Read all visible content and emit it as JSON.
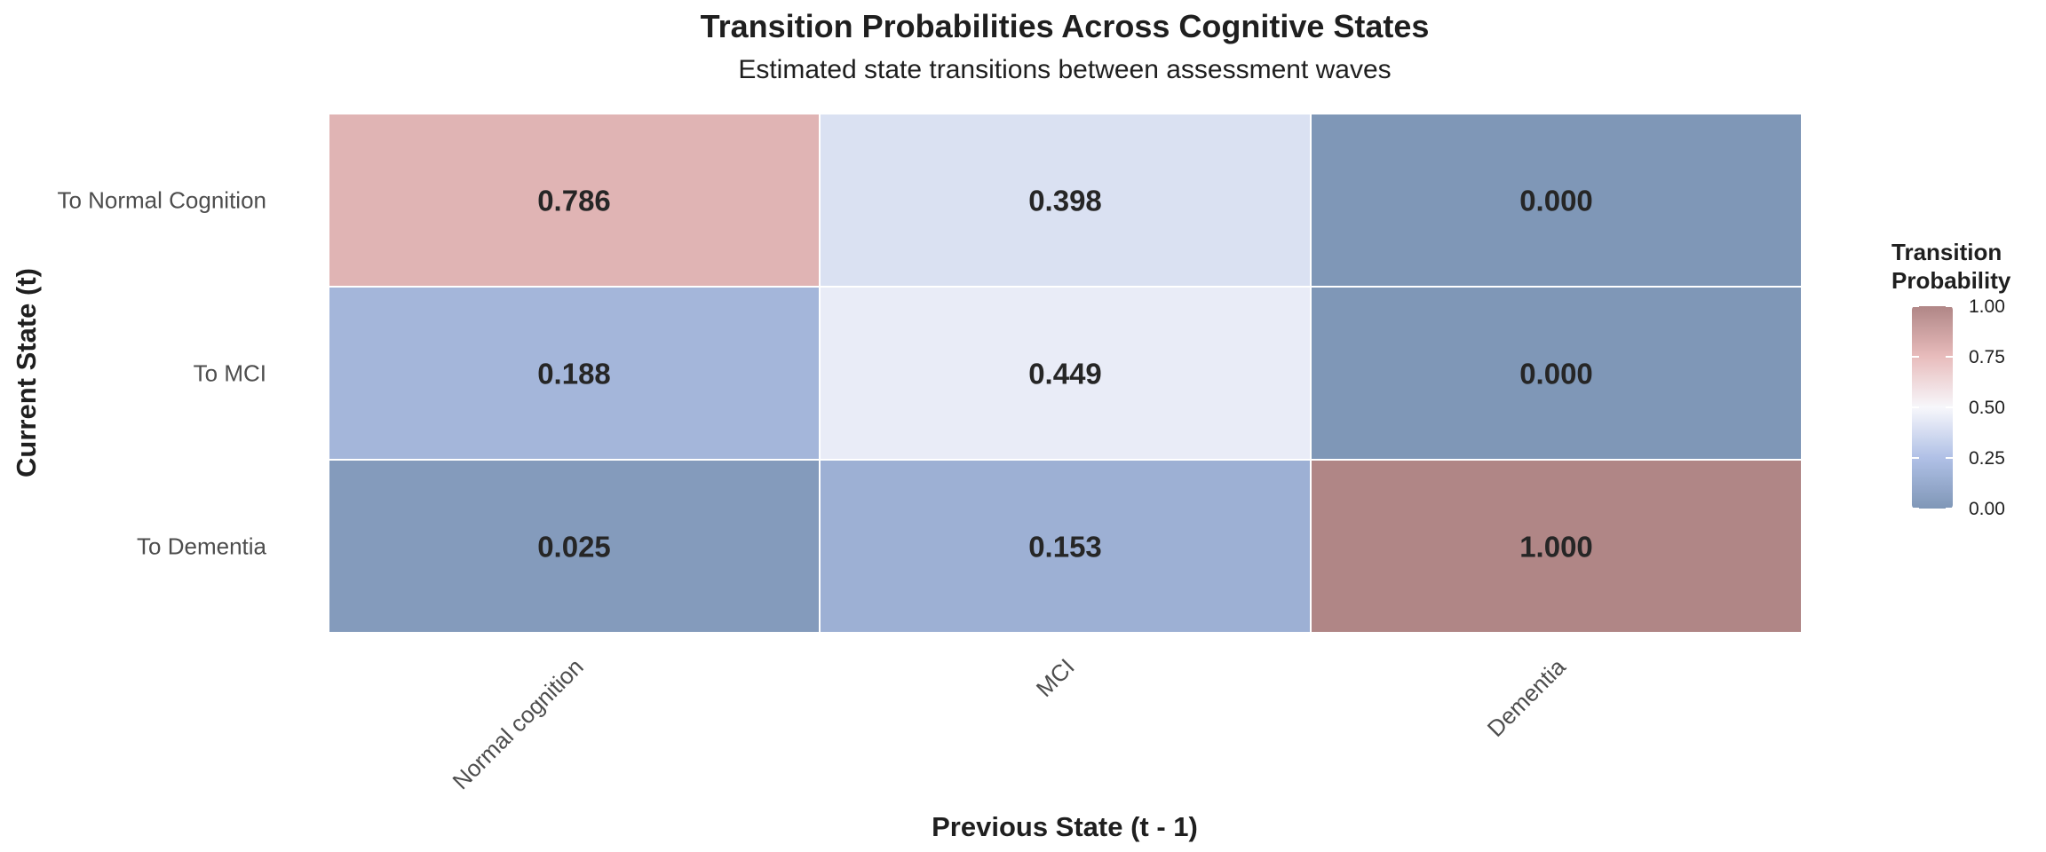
{
  "chart_data": {
    "type": "heatmap",
    "title": "Transition Probabilities Across Cognitive States",
    "subtitle": "Estimated state transitions between assessment waves",
    "xlabel": "Previous State (t - 1)",
    "ylabel": "Current State (t)",
    "x_categories": [
      "Normal cognition",
      "MCI",
      "Dementia"
    ],
    "y_categories": [
      "To Normal Cognition",
      "To MCI",
      "To Dementia"
    ],
    "values": [
      [
        0.786,
        0.398,
        0.0
      ],
      [
        0.188,
        0.449,
        0.0
      ],
      [
        0.025,
        0.153,
        1.0
      ]
    ],
    "cell_labels": [
      [
        "0.786",
        "0.398",
        "0.000"
      ],
      [
        "0.188",
        "0.449",
        "0.000"
      ],
      [
        "0.025",
        "0.153",
        "1.000"
      ]
    ],
    "color_scale": {
      "low": "#7f97b7",
      "mid_low": "#b0c0e6",
      "mid": "#f7f7fb",
      "mid_high": "#e8bcbc",
      "high": "#b08686",
      "range": [
        0,
        1
      ]
    },
    "legend": {
      "title_lines": [
        "Transition",
        "Probability"
      ],
      "ticks": [
        "1.00",
        "0.75",
        "0.50",
        "0.25",
        "0.00"
      ],
      "placement": "right"
    },
    "grid": false
  }
}
